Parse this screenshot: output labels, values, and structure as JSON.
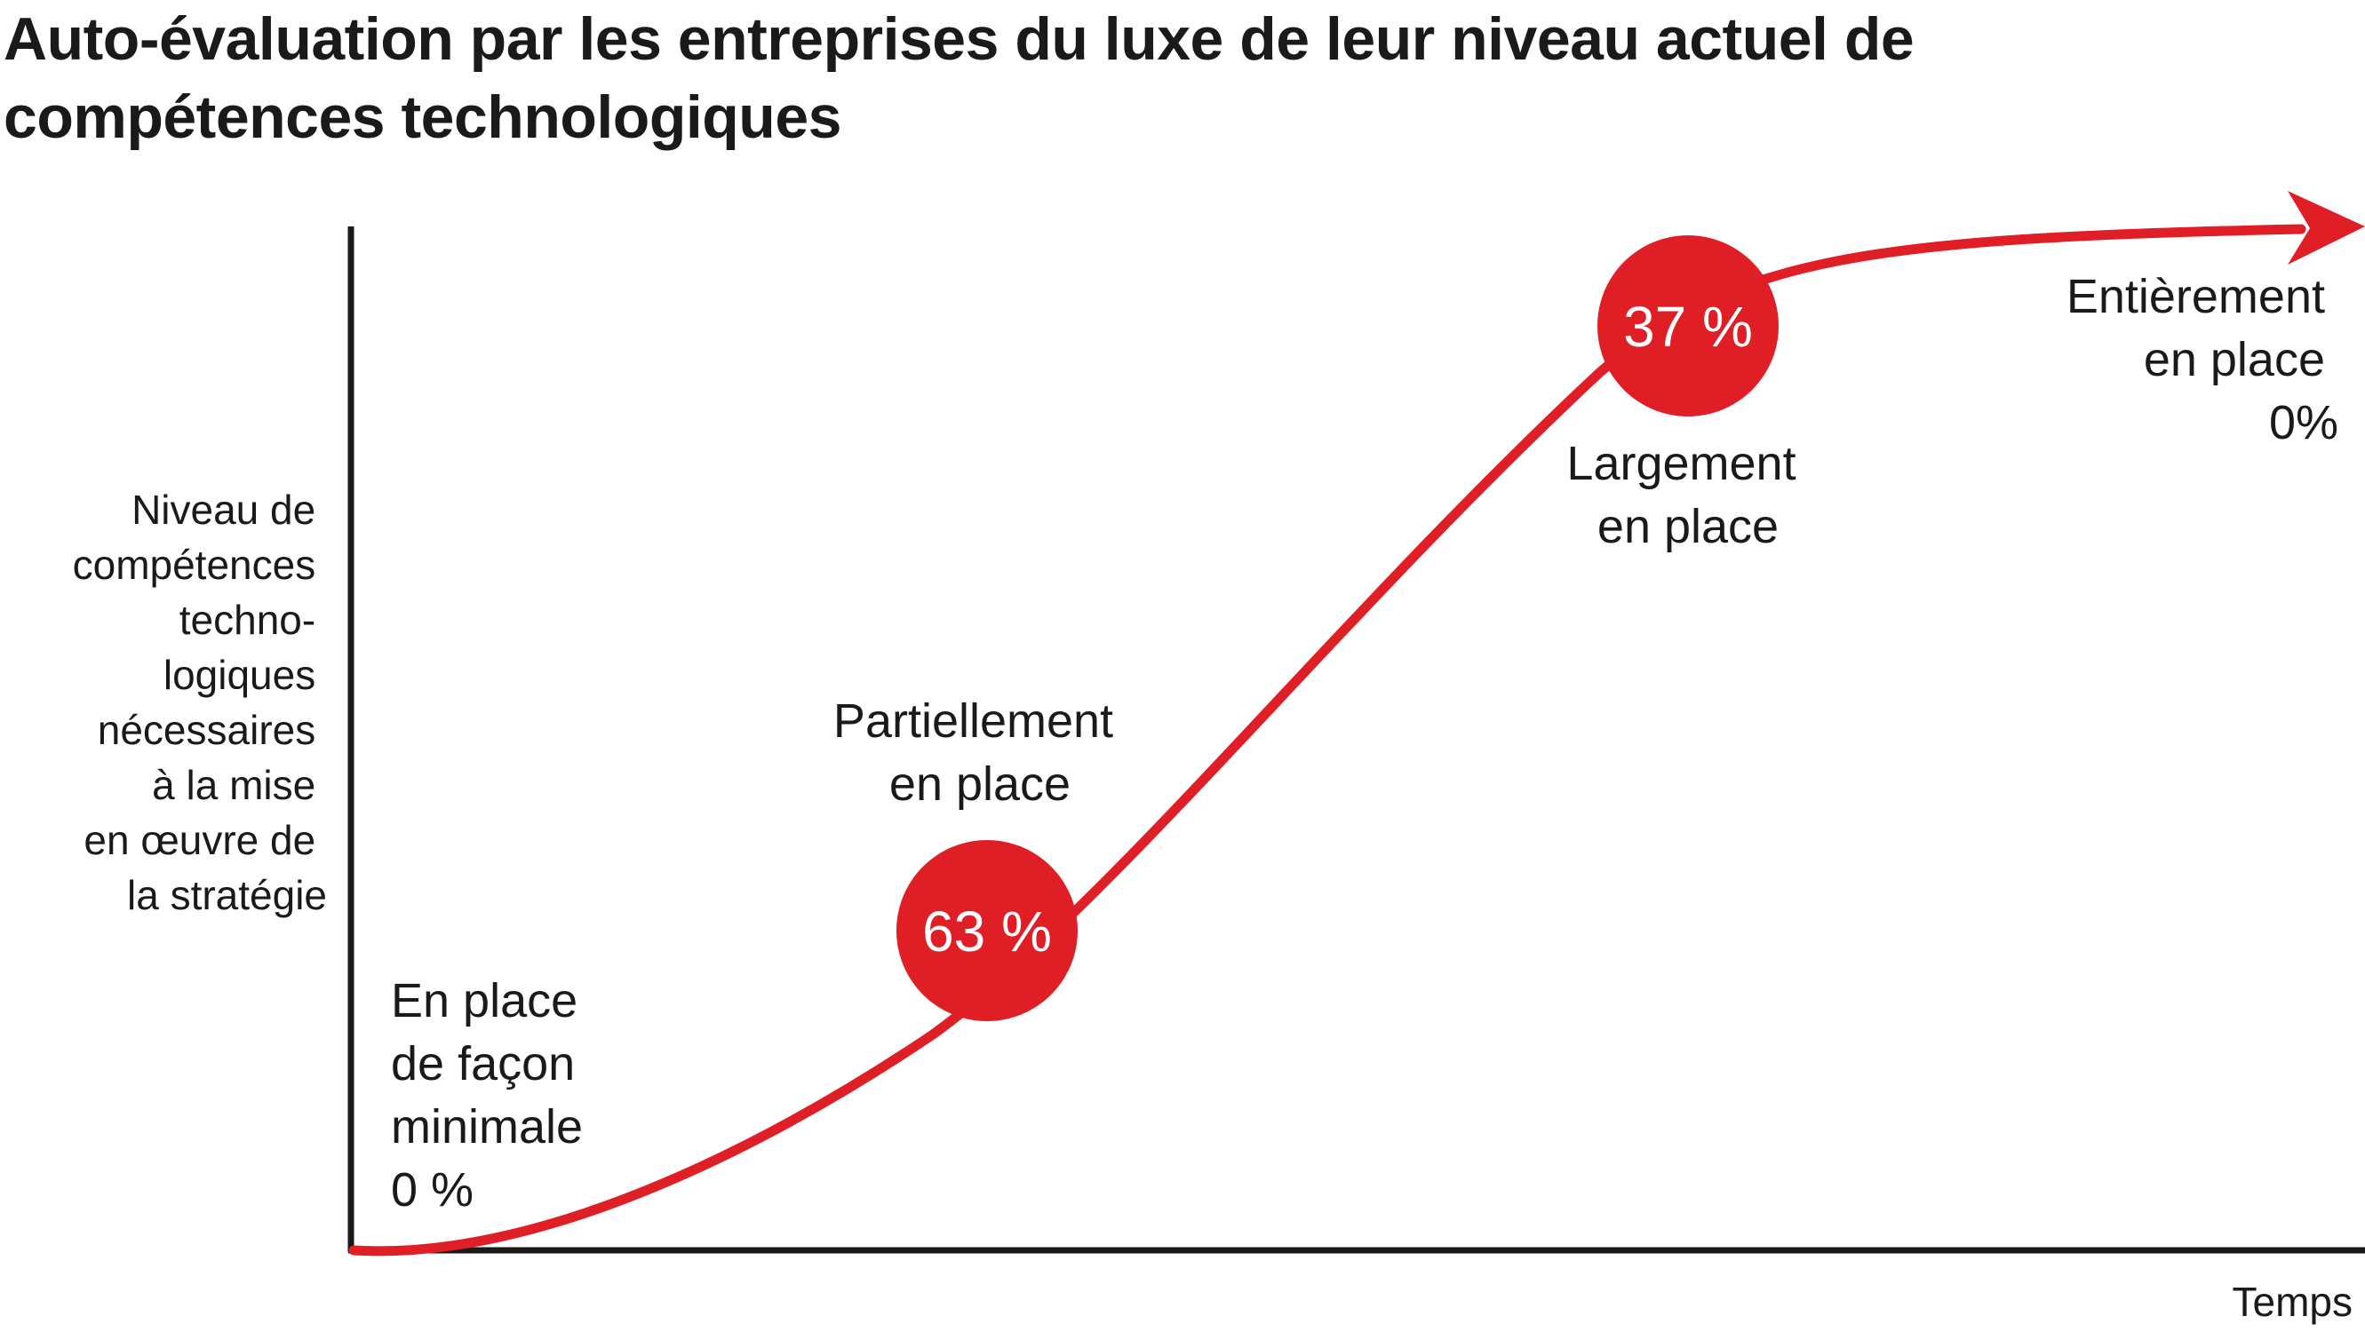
{
  "chart_data": {
    "type": "line",
    "title": "Auto-évaluation par les entreprises du luxe de leur niveau actuel de\ncompétences technologiques",
    "xlabel": "Temps",
    "ylabel": [
      "Niveau de",
      "compétences",
      "techno-",
      "logiques",
      "nécessaires",
      "à la mise",
      "en œuvre de",
      "la stratégie"
    ],
    "series_color": "#e01e26",
    "stages": [
      {
        "name": "minimal",
        "label": [
          "En place",
          "de façon",
          "minimale",
          "0 %"
        ],
        "value": "0 %",
        "badge": false
      },
      {
        "name": "partial",
        "label": [
          "Partiellement",
          "en place"
        ],
        "value": "63 %",
        "badge": true
      },
      {
        "name": "largely",
        "label": [
          "Largement",
          "en place"
        ],
        "value": "37 %",
        "badge": true
      },
      {
        "name": "fully",
        "label": [
          "Entièrement",
          "en place",
          "0%"
        ],
        "value": "0%",
        "badge": false
      }
    ]
  }
}
